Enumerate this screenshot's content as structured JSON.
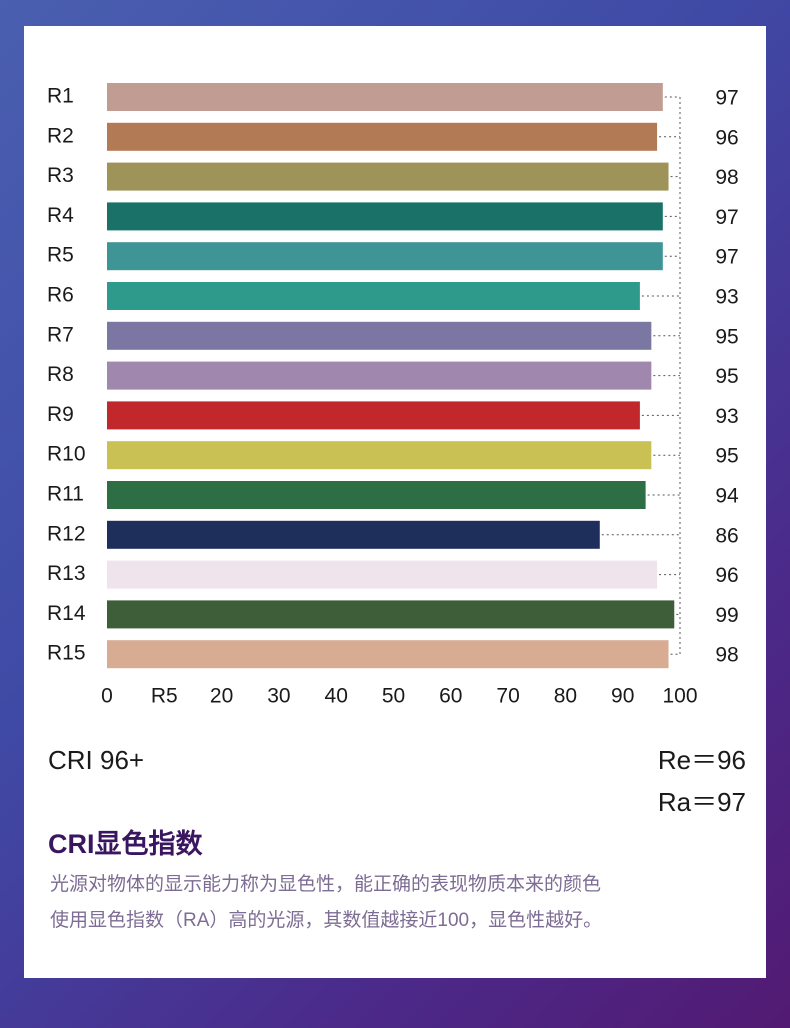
{
  "chart_data": {
    "type": "bar",
    "orientation": "horizontal",
    "categories": [
      "R1",
      "R2",
      "R3",
      "R4",
      "R5",
      "R6",
      "R7",
      "R8",
      "R9",
      "R10",
      "R11",
      "R12",
      "R13",
      "R14",
      "R15"
    ],
    "values": [
      97,
      96,
      98,
      97,
      97,
      93,
      95,
      95,
      93,
      95,
      94,
      86,
      96,
      99,
      98
    ],
    "colors": [
      "#c09c92",
      "#b37a56",
      "#9e9459",
      "#1a7168",
      "#3f9595",
      "#2e9a8b",
      "#7a78a3",
      "#a087ad",
      "#c0282c",
      "#c9c154",
      "#2d6e45",
      "#1f2f5b",
      "#efe3ec",
      "#3d5e38",
      "#d8ab93"
    ],
    "xlim": [
      0,
      100
    ],
    "xticks": [
      0,
      {
        "value": 10,
        "label": "R5"
      },
      20,
      30,
      40,
      50,
      60,
      70,
      80,
      90,
      100
    ]
  },
  "notes": {
    "cri": "CRI 96+",
    "re": "Re＝96",
    "ra": "Ra＝97"
  },
  "section": {
    "title": "CRI显色指数",
    "lines": [
      "光源对物体的显示能力称为显色性，能正确的表现物质本来的颜色",
      "使用显色指数（RA）高的光源，其数值越接近100，显色性越好。"
    ]
  }
}
